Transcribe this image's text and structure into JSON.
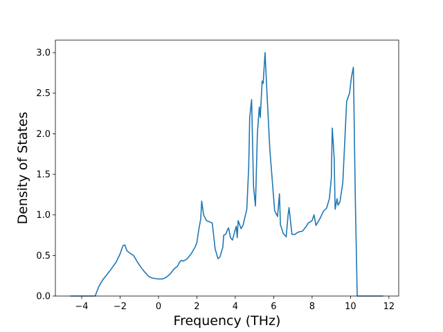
{
  "chart_data": {
    "type": "line",
    "xlabel": "Frequency (THz)",
    "ylabel": "Density of States",
    "color": "#1f77b4",
    "x": [
      -4.6,
      -3.3,
      -3.1,
      -2.9,
      -2.5,
      -2.2,
      -2.0,
      -1.85,
      -1.75,
      -1.65,
      -1.5,
      -1.3,
      -1.1,
      -0.9,
      -0.7,
      -0.5,
      -0.3,
      0,
      0.2,
      0.4,
      0.6,
      0.8,
      1.0,
      1.1,
      1.2,
      1.3,
      1.5,
      1.7,
      1.9,
      2.0,
      2.1,
      2.2,
      2.25,
      2.35,
      2.5,
      2.7,
      2.8,
      2.95,
      3.1,
      3.2,
      3.35,
      3.4,
      3.5,
      3.6,
      3.65,
      3.75,
      3.85,
      4.0,
      4.05,
      4.1,
      4.15,
      4.3,
      4.4,
      4.6,
      4.7,
      4.75,
      4.85,
      4.95,
      5.05,
      5.15,
      5.25,
      5.3,
      5.4,
      5.45,
      5.55,
      5.65,
      5.8,
      5.9,
      6.05,
      6.2,
      6.3,
      6.35,
      6.5,
      6.65,
      6.75,
      6.8,
      6.95,
      7.1,
      7.3,
      7.5,
      7.7,
      7.8,
      8.0,
      8.1,
      8.2,
      8.4,
      8.6,
      8.75,
      8.9,
      9.0,
      9.05,
      9.15,
      9.2,
      9.3,
      9.35,
      9.45,
      9.6,
      9.7,
      9.8,
      9.95,
      10.05,
      10.15,
      10.25,
      10.35,
      11.7
    ],
    "values": [
      0,
      0,
      0.12,
      0.2,
      0.32,
      0.42,
      0.52,
      0.62,
      0.63,
      0.56,
      0.53,
      0.5,
      0.42,
      0.35,
      0.29,
      0.24,
      0.22,
      0.21,
      0.21,
      0.23,
      0.27,
      0.33,
      0.37,
      0.42,
      0.44,
      0.43,
      0.46,
      0.52,
      0.6,
      0.66,
      0.82,
      0.95,
      1.17,
      1.0,
      0.93,
      0.91,
      0.9,
      0.58,
      0.46,
      0.48,
      0.6,
      0.75,
      0.76,
      0.82,
      0.84,
      0.72,
      0.69,
      0.82,
      0.86,
      0.72,
      0.93,
      0.83,
      0.87,
      1.07,
      1.6,
      2.2,
      2.42,
      1.35,
      1.11,
      2.0,
      2.33,
      2.2,
      2.65,
      2.62,
      3.0,
      2.5,
      1.8,
      1.5,
      1.05,
      0.98,
      1.26,
      0.88,
      0.77,
      0.73,
      1.0,
      1.09,
      0.76,
      0.76,
      0.79,
      0.8,
      0.86,
      0.9,
      0.93,
      1.0,
      0.87,
      0.95,
      1.05,
      1.08,
      1.2,
      1.45,
      2.07,
      1.7,
      1.07,
      1.2,
      1.12,
      1.16,
      1.4,
      1.9,
      2.4,
      2.5,
      2.7,
      2.82,
      1.2,
      0,
      0
    ],
    "xlim": [
      -5.37,
      12.51
    ],
    "xticks": [
      {
        "value": -4,
        "label": "−4"
      },
      {
        "value": -2,
        "label": "−2"
      },
      0,
      2,
      4,
      6,
      8,
      10,
      12
    ],
    "ylim": [
      0,
      3.154
    ],
    "yticks": [
      {
        "value": 0,
        "label": "0.0"
      },
      {
        "value": 0.5,
        "label": "0.5"
      },
      {
        "value": 1,
        "label": "1.0"
      },
      {
        "value": 1.5,
        "label": "1.5"
      },
      {
        "value": 2,
        "label": "2.0"
      },
      {
        "value": 2.5,
        "label": "2.5"
      },
      {
        "value": 3,
        "label": "3.0"
      }
    ],
    "grid": false
  }
}
